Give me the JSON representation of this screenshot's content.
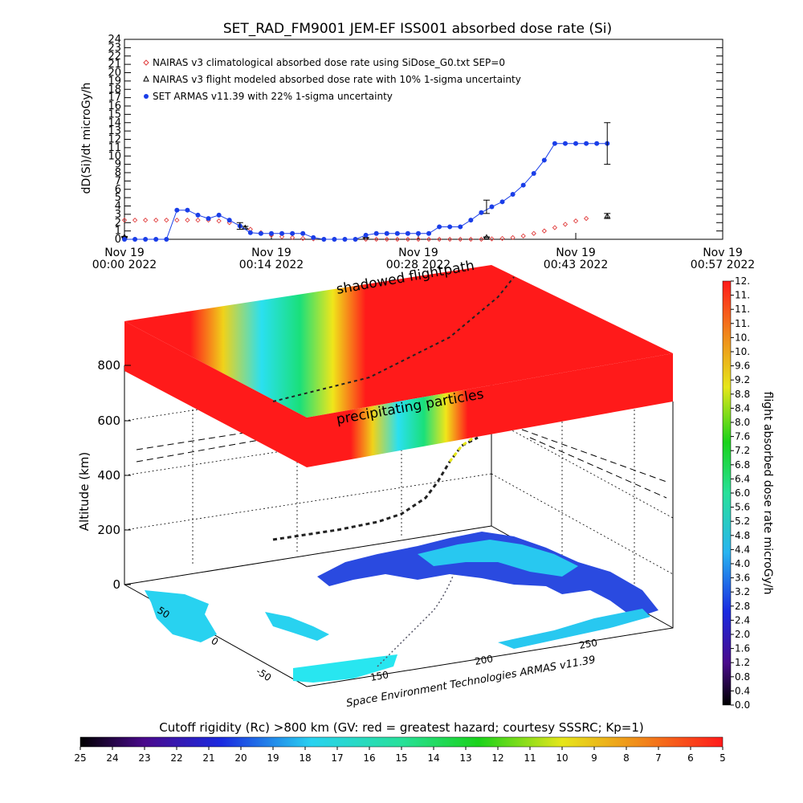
{
  "chart_data": [
    {
      "type": "line",
      "title": "SET_RAD_FM9001  JEM-EF ISS001 absorbed dose rate (Si)",
      "ylabel": "dD(Si)/dt microGy/h",
      "ylim": [
        0,
        24
      ],
      "xlim_minutes": [
        0,
        57
      ],
      "yticks": [
        "0",
        "1",
        "2",
        "3",
        "4",
        "5",
        "6",
        "7",
        "8",
        "9",
        "10",
        "11",
        "12",
        "13",
        "14",
        "15",
        "16",
        "17",
        "18",
        "19",
        "20",
        "21",
        "22",
        "23",
        "24"
      ],
      "xticks": [
        {
          "minute": 0,
          "line1": "Nov 19",
          "line2": "00:00 2022"
        },
        {
          "minute": 14,
          "line1": "Nov 19",
          "line2": "00:14 2022"
        },
        {
          "minute": 28,
          "line1": "Nov 19",
          "line2": "00:28 2022"
        },
        {
          "minute": 43,
          "line1": "Nov 19",
          "line2": "00:43 2022"
        },
        {
          "minute": 57,
          "line1": "Nov 19",
          "line2": "00:57 2022"
        }
      ],
      "legend_placement": "top-left",
      "series": [
        {
          "name": "NAIRAS v3 climatological absorbed dose rate using SiDose_G0.txt SEP=0",
          "marker": "diamond",
          "color": "#e03c3c",
          "line": false,
          "x": [
            0,
            1,
            2,
            3,
            4,
            5,
            6,
            7,
            8,
            9,
            10,
            11,
            12,
            13,
            14,
            15,
            16,
            17,
            18,
            19,
            20,
            21,
            22,
            23,
            24,
            25,
            26,
            27,
            28,
            29,
            30,
            31,
            32,
            33,
            34,
            35,
            36,
            37,
            38,
            39,
            40,
            41,
            42,
            43,
            44
          ],
          "y": [
            2.3,
            2.3,
            2.3,
            2.3,
            2.3,
            2.3,
            2.3,
            2.3,
            2.3,
            2.2,
            2.0,
            1.6,
            1.2,
            0.8,
            0.5,
            0.3,
            0.2,
            0.1,
            0.05,
            0,
            0,
            0,
            0,
            0,
            0,
            0,
            0,
            0,
            0,
            0,
            0,
            0,
            0,
            0,
            0,
            0.05,
            0.1,
            0.2,
            0.4,
            0.7,
            1.0,
            1.4,
            1.8,
            2.2,
            2.5
          ]
        },
        {
          "name": "NAIRAS v3 flight modeled absorbed dose rate with 10% 1-sigma uncertainty",
          "marker": "triangle",
          "color": "#000000",
          "line": false,
          "x": [
            0,
            11.5,
            23,
            34.5,
            46
          ],
          "y": [
            0.3,
            1.4,
            0.2,
            0.25,
            2.8
          ],
          "yerr": [
            0.05,
            0.15,
            0.02,
            0.03,
            0.3
          ]
        },
        {
          "name": "SET ARMAS v11.39 with 22% 1-sigma uncertainty",
          "marker": "circle",
          "color": "#1a3ee8",
          "line": true,
          "x": [
            0,
            1,
            2,
            3,
            4,
            5,
            6,
            7,
            8,
            9,
            10,
            11,
            12,
            13,
            14,
            15,
            16,
            17,
            18,
            19,
            20,
            21,
            22,
            23,
            24,
            25,
            26,
            27,
            28,
            29,
            30,
            31,
            32,
            33,
            34,
            35,
            36,
            37,
            38,
            39,
            40,
            41,
            42,
            43,
            44,
            45,
            46
          ],
          "y": [
            0,
            0,
            0,
            0,
            0,
            3.5,
            3.5,
            2.9,
            2.5,
            2.9,
            2.3,
            1.6,
            0.8,
            0.7,
            0.7,
            0.7,
            0.7,
            0.7,
            0.2,
            0,
            0,
            0,
            0,
            0.5,
            0.7,
            0.7,
            0.7,
            0.7,
            0.7,
            0.7,
            1.5,
            1.5,
            1.5,
            2.3,
            3.2,
            3.9,
            4.5,
            5.4,
            6.5,
            7.9,
            9.5,
            11.5,
            11.5,
            11.5,
            11.5,
            11.5,
            11.5
          ],
          "yerr_points": [
            {
              "x": 11,
              "err": 0.4
            },
            {
              "x": 34.5,
              "err": 0.8
            },
            {
              "x": 46,
              "err": 2.5
            }
          ]
        }
      ]
    },
    {
      "type": "heatmap",
      "subtitle": "3D flight path over Earth map",
      "zlabel": "Altitude (km)",
      "zticks": [
        "0",
        "200",
        "400",
        "600",
        "800"
      ],
      "lat_ticks": [
        "50",
        "0",
        "-50"
      ],
      "lon_ticks": [
        "150",
        "200",
        "250"
      ],
      "annotations": [
        "shadowed flightpath",
        "precipitating particles"
      ],
      "credit": "Space Environment Technologies ARMAS v11.39",
      "colorbar": {
        "label": "flight absorbed dose rate microGy/h",
        "ticks": [
          "0.0",
          "0.4",
          "0.8",
          "1.2",
          "1.6",
          "2.0",
          "2.4",
          "2.8",
          "3.2",
          "3.6",
          "4.0",
          "4.4",
          "4.8",
          "5.2",
          "5.6",
          "6.0",
          "6.4",
          "6.8",
          "7.2",
          "7.6",
          "8.0",
          "8.4",
          "8.8",
          "9.2",
          "9.6",
          "10.",
          "10.",
          "11.",
          "11.",
          "11.",
          "12."
        ]
      }
    },
    {
      "type": "heatmap",
      "subtitle": "colorbar",
      "title": "Cutoff rigidity (Rc) >800 km (GV: red = greatest hazard; courtesy SSSRC; Kp=1)",
      "ticks": [
        "25",
        "24",
        "23",
        "22",
        "21",
        "20",
        "19",
        "18",
        "17",
        "16",
        "15",
        "14",
        "13",
        "12",
        "11",
        "10",
        "9",
        "8",
        "7",
        "6",
        "5"
      ]
    }
  ]
}
